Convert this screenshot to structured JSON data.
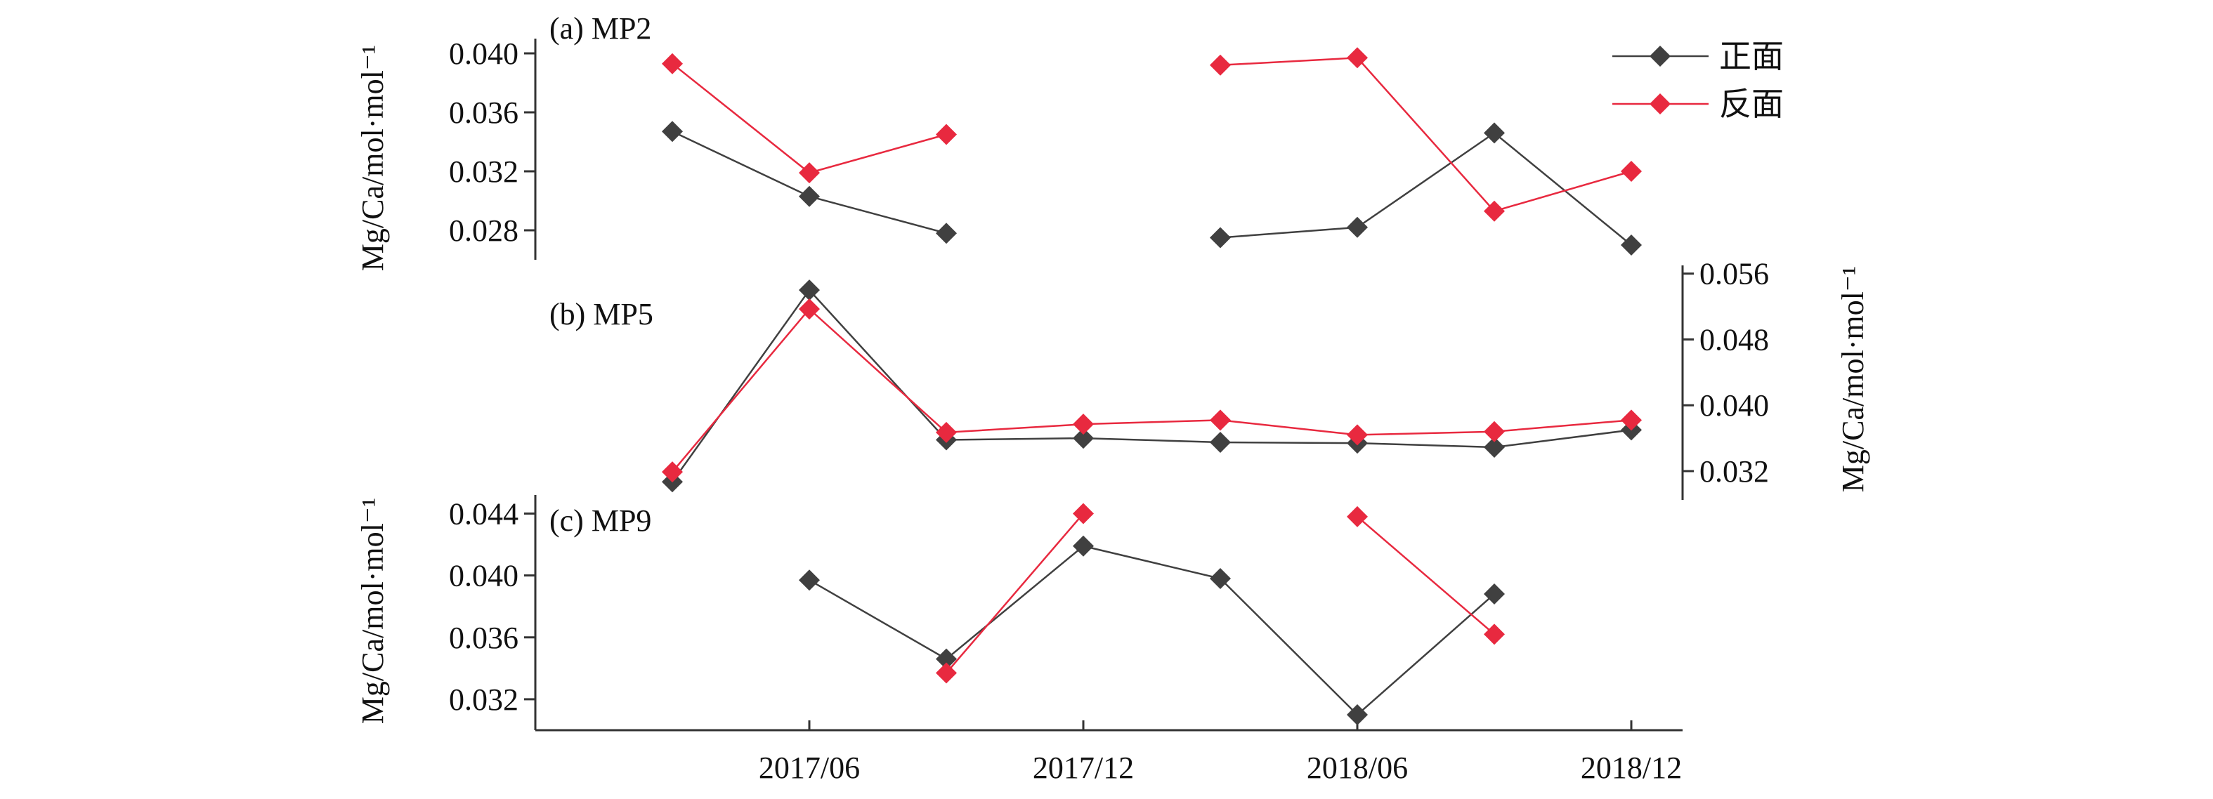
{
  "chart_data": [
    {
      "type": "line",
      "title": "(a) MP2",
      "ylabel": "Mg/Ca/mol·mol⁻¹",
      "y_axis_side": "left",
      "ylim": [
        0.026,
        0.041
      ],
      "yticks": [
        0.028,
        0.032,
        0.036,
        0.04
      ],
      "ytick_labels": [
        "0.028",
        "0.032",
        "0.036",
        "0.040"
      ],
      "legend_position": "top-right",
      "series": [
        {
          "name": "正面",
          "color": "#404040",
          "marker": "diamond",
          "x": [
            1,
            2,
            3,
            5,
            6,
            7,
            8
          ],
          "y": [
            0.0347,
            0.0303,
            0.0278,
            0.0275,
            0.0282,
            0.0346,
            0.027
          ]
        },
        {
          "name": "反面",
          "color": "#e8293f",
          "marker": "diamond",
          "x": [
            1,
            2,
            3,
            5,
            6,
            7,
            8
          ],
          "y": [
            0.0393,
            0.0319,
            0.0345,
            0.0392,
            0.0397,
            0.0293,
            0.032
          ]
        }
      ]
    },
    {
      "type": "line",
      "title": "(b) MP5",
      "ylabel": "Mg/Ca/mol·mol⁻¹",
      "y_axis_side": "right",
      "ylim": [
        0.0285,
        0.057
      ],
      "yticks": [
        0.032,
        0.04,
        0.048,
        0.056
      ],
      "ytick_labels": [
        "0.032",
        "0.040",
        "0.048",
        "0.056"
      ],
      "series": [
        {
          "name": "正面",
          "color": "#404040",
          "marker": "diamond",
          "x": [
            1,
            2,
            3,
            4,
            5,
            6,
            7,
            8
          ],
          "y": [
            0.0307,
            0.054,
            0.0358,
            0.036,
            0.0355,
            0.0354,
            0.0349,
            0.037
          ]
        },
        {
          "name": "反面",
          "color": "#e8293f",
          "marker": "diamond",
          "x": [
            1,
            2,
            3,
            4,
            5,
            6,
            7,
            8
          ],
          "y": [
            0.0319,
            0.0517,
            0.0367,
            0.0377,
            0.0382,
            0.0364,
            0.0368,
            0.0382
          ]
        }
      ]
    },
    {
      "type": "line",
      "title": "(c) MP9",
      "ylabel": "Mg/Ca/mol·mol⁻¹",
      "y_axis_side": "left",
      "ylim": [
        0.03,
        0.0452
      ],
      "yticks": [
        0.032,
        0.036,
        0.04,
        0.044
      ],
      "ytick_labels": [
        "0.032",
        "0.036",
        "0.040",
        "0.044"
      ],
      "xlim": [
        0,
        8.5
      ],
      "xticks": [
        2,
        4,
        6,
        8
      ],
      "xtick_labels": [
        "2017/06",
        "2017/12",
        "2018/06",
        "2018/12"
      ],
      "series": [
        {
          "name": "正面",
          "color": "#404040",
          "marker": "diamond",
          "x": [
            2,
            3,
            4,
            5,
            6,
            7
          ],
          "y": [
            0.0397,
            0.0346,
            0.0419,
            0.0398,
            0.031,
            0.0388
          ]
        },
        {
          "name": "反面",
          "color": "#e8293f",
          "marker": "diamond",
          "x": [
            3,
            4,
            6,
            7
          ],
          "y": [
            0.0337,
            0.044,
            0.0438,
            0.0362
          ]
        }
      ]
    }
  ]
}
